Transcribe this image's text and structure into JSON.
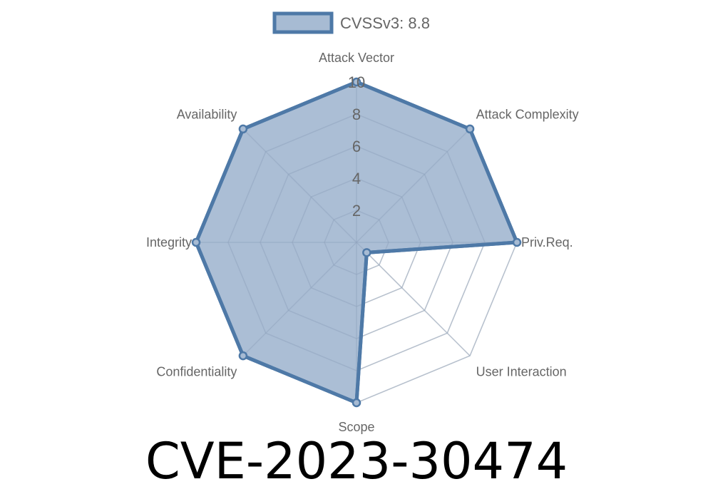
{
  "chart_data": {
    "type": "radar",
    "legend": {
      "label": "CVSSv3: 8.8",
      "position": "top"
    },
    "categories": [
      "Attack Vector",
      "Attack Complexity",
      "Priv.Req.",
      "User Interaction",
      "Scope",
      "Confidentiality",
      "Integrity",
      "Availability"
    ],
    "series": [
      {
        "name": "CVSSv3: 8.8",
        "values": [
          10,
          10,
          10,
          0.9,
          10,
          10,
          10,
          10
        ]
      }
    ],
    "rlim": [
      0,
      10
    ],
    "ticks": [
      "2",
      "4",
      "6",
      "8",
      "10"
    ],
    "grid": true,
    "colors": {
      "line": "#4e79a7",
      "fill": "#a7bbd3",
      "grid": "#dddddd"
    }
  },
  "title": "CVE-2023-30474"
}
